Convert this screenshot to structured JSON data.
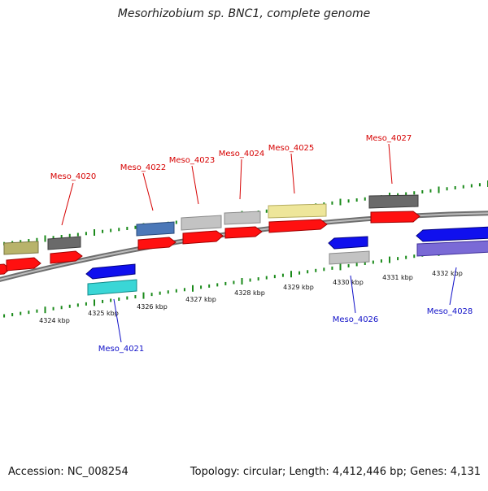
{
  "title": "Mesorhizobium sp. BNC1, complete genome",
  "footer": {
    "accession": "Accession: NC_008254",
    "stats": "Topology: circular; Length: 4,412,446 bp; Genes: 4,131"
  },
  "axis_ticks": [
    "4324 kbp",
    "4325 kbp",
    "4326 kbp",
    "4327 kbp",
    "4328 kbp",
    "4329 kbp",
    "4330 kbp",
    "4331 kbp",
    "4332 kbp"
  ],
  "genes_forward": [
    {
      "name": "Meso_4020",
      "color": "#d60000"
    },
    {
      "name": "Meso_4022",
      "color": "#d60000"
    },
    {
      "name": "Meso_4023",
      "color": "#d60000"
    },
    {
      "name": "Meso_4024",
      "color": "#d60000"
    },
    {
      "name": "Meso_4025",
      "color": "#d60000"
    },
    {
      "name": "Meso_4027",
      "color": "#d60000"
    }
  ],
  "genes_reverse": [
    {
      "name": "Meso_4021",
      "color": "#1010c8"
    },
    {
      "name": "Meso_4026",
      "color": "#1010c8"
    },
    {
      "name": "Meso_4028",
      "color": "#1010c8"
    }
  ],
  "colors": {
    "backbone": "#8a8a8a",
    "ticks": "#1a8a1a",
    "forward_label": "#d60000",
    "reverse_label": "#1010c8"
  }
}
